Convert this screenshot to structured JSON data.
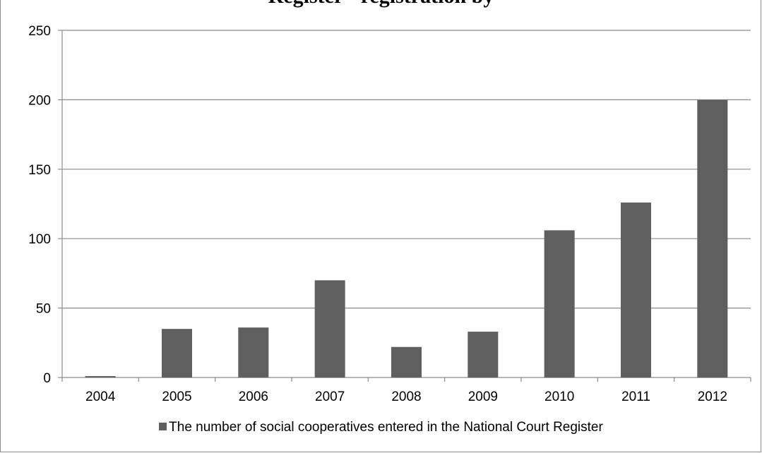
{
  "chart_data": {
    "type": "bar",
    "title": "Register - registration by",
    "categories": [
      "2004",
      "2005",
      "2006",
      "2007",
      "2008",
      "2009",
      "2010",
      "2011",
      "2012"
    ],
    "series": [
      {
        "name": "The number of social cooperatives entered in the National Court Register",
        "values": [
          1,
          35,
          36,
          70,
          22,
          33,
          106,
          126,
          200
        ]
      }
    ],
    "ylim": [
      0,
      250
    ],
    "yticks": [
      0,
      50,
      100,
      150,
      200,
      250
    ],
    "grid": true,
    "legend": "bottom",
    "bar_color": "#5f5f5f",
    "grid_color": "#8c8c8c"
  }
}
